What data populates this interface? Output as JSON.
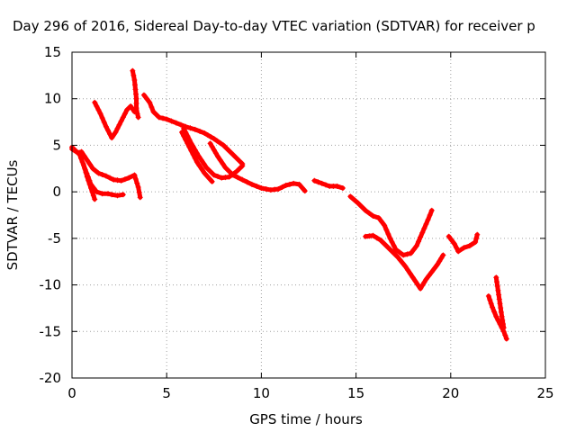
{
  "chart_data": {
    "type": "scatter",
    "title": "Day 296 of 2016, Sidereal Day-to-day VTEC variation (SDTVAR) for receiver p",
    "xlabel": "GPS time / hours",
    "ylabel": "SDTVAR / TECUs",
    "xlim": [
      0,
      25
    ],
    "ylim": [
      -20,
      15
    ],
    "x_ticks": [
      0,
      5,
      10,
      15,
      20,
      25
    ],
    "y_ticks": [
      15,
      10,
      5,
      0,
      -5,
      -10,
      -15,
      -20
    ],
    "grid": true,
    "marker": "+",
    "color": "#ff0000",
    "series": [
      {
        "points": [
          [
            0.0,
            4.8
          ],
          [
            0.4,
            4.0
          ],
          [
            0.7,
            2.4
          ],
          [
            1.0,
            0.8
          ],
          [
            1.3,
            0.0
          ],
          [
            1.6,
            -0.2
          ],
          [
            1.9,
            -0.2
          ],
          [
            2.1,
            -0.3
          ],
          [
            2.4,
            -0.4
          ],
          [
            2.7,
            -0.3
          ]
        ]
      },
      {
        "points": [
          [
            0.0,
            4.6
          ],
          [
            0.3,
            4.2
          ],
          [
            0.5,
            4.3
          ],
          [
            0.8,
            3.4
          ],
          [
            1.1,
            2.5
          ],
          [
            1.4,
            2.0
          ],
          [
            1.8,
            1.7
          ],
          [
            2.2,
            1.3
          ],
          [
            2.6,
            1.2
          ],
          [
            3.0,
            1.5
          ],
          [
            3.3,
            1.8
          ],
          [
            3.5,
            0.5
          ],
          [
            3.6,
            -0.6
          ]
        ]
      },
      {
        "points": [
          [
            0.6,
            3.0
          ],
          [
            0.8,
            1.6
          ],
          [
            1.0,
            0.4
          ],
          [
            1.2,
            -0.8
          ]
        ]
      },
      {
        "points": [
          [
            1.2,
            9.6
          ],
          [
            1.5,
            8.4
          ],
          [
            1.8,
            7.0
          ],
          [
            2.1,
            5.8
          ],
          [
            2.3,
            6.4
          ],
          [
            2.6,
            7.6
          ],
          [
            2.9,
            8.8
          ],
          [
            3.1,
            9.2
          ],
          [
            3.3,
            8.6
          ]
        ]
      },
      {
        "points": [
          [
            3.2,
            13.0
          ],
          [
            3.3,
            12.0
          ],
          [
            3.35,
            11.0
          ],
          [
            3.4,
            10.0
          ],
          [
            3.4,
            9.0
          ],
          [
            3.45,
            8.4
          ],
          [
            3.5,
            8.0
          ]
        ]
      },
      {
        "points": [
          [
            3.8,
            10.4
          ],
          [
            4.1,
            9.6
          ],
          [
            4.3,
            8.6
          ],
          [
            4.6,
            8.0
          ],
          [
            5.0,
            7.8
          ],
          [
            5.5,
            7.4
          ],
          [
            6.0,
            7.0
          ],
          [
            6.5,
            6.7
          ],
          [
            7.0,
            6.3
          ],
          [
            7.5,
            5.7
          ],
          [
            8.0,
            5.0
          ],
          [
            8.5,
            4.0
          ],
          [
            9.0,
            3.0
          ]
        ]
      },
      {
        "points": [
          [
            5.9,
            6.8
          ],
          [
            6.3,
            5.2
          ],
          [
            6.7,
            3.8
          ],
          [
            7.1,
            2.6
          ],
          [
            7.5,
            1.8
          ],
          [
            7.9,
            1.5
          ],
          [
            8.3,
            1.6
          ],
          [
            8.7,
            2.2
          ],
          [
            9.0,
            2.8
          ]
        ]
      },
      {
        "points": [
          [
            5.8,
            6.4
          ],
          [
            6.2,
            4.8
          ],
          [
            6.6,
            3.2
          ],
          [
            7.0,
            2.0
          ],
          [
            7.4,
            1.1
          ]
        ]
      },
      {
        "points": [
          [
            7.3,
            5.2
          ],
          [
            7.7,
            3.8
          ],
          [
            8.1,
            2.6
          ],
          [
            8.5,
            1.8
          ],
          [
            9.0,
            1.3
          ],
          [
            9.5,
            0.8
          ],
          [
            10.0,
            0.4
          ],
          [
            10.5,
            0.2
          ],
          [
            10.9,
            0.3
          ],
          [
            11.3,
            0.7
          ],
          [
            11.7,
            0.9
          ],
          [
            12.0,
            0.8
          ],
          [
            12.3,
            0.1
          ]
        ]
      },
      {
        "points": [
          [
            12.8,
            1.2
          ],
          [
            13.2,
            0.9
          ],
          [
            13.6,
            0.6
          ],
          [
            14.0,
            0.6
          ],
          [
            14.3,
            0.4
          ]
        ]
      },
      {
        "points": [
          [
            14.7,
            -0.5
          ],
          [
            15.1,
            -1.2
          ],
          [
            15.5,
            -2.0
          ],
          [
            15.9,
            -2.6
          ],
          [
            16.2,
            -2.8
          ],
          [
            16.5,
            -3.6
          ],
          [
            16.8,
            -5.0
          ],
          [
            17.1,
            -6.2
          ],
          [
            17.5,
            -6.8
          ],
          [
            17.9,
            -6.6
          ],
          [
            18.2,
            -5.8
          ],
          [
            18.5,
            -4.4
          ],
          [
            18.8,
            -3.0
          ],
          [
            19.0,
            -2.0
          ]
        ]
      },
      {
        "points": [
          [
            15.5,
            -4.8
          ],
          [
            15.9,
            -4.7
          ],
          [
            16.3,
            -5.2
          ],
          [
            16.7,
            -6.0
          ],
          [
            17.2,
            -7.0
          ],
          [
            17.6,
            -8.0
          ],
          [
            18.0,
            -9.2
          ],
          [
            18.4,
            -10.4
          ],
          [
            18.7,
            -9.4
          ],
          [
            19.0,
            -8.6
          ],
          [
            19.3,
            -7.8
          ],
          [
            19.6,
            -6.8
          ]
        ]
      },
      {
        "points": [
          [
            19.9,
            -4.8
          ],
          [
            20.2,
            -5.6
          ],
          [
            20.4,
            -6.4
          ],
          [
            20.7,
            -6.0
          ],
          [
            21.0,
            -5.8
          ],
          [
            21.3,
            -5.4
          ],
          [
            21.4,
            -4.6
          ]
        ]
      },
      {
        "points": [
          [
            22.0,
            -11.2
          ],
          [
            22.2,
            -12.4
          ],
          [
            22.4,
            -13.4
          ],
          [
            22.6,
            -14.2
          ],
          [
            22.8,
            -15.0
          ],
          [
            22.95,
            -15.8
          ]
        ]
      },
      {
        "points": [
          [
            22.4,
            -9.2
          ],
          [
            22.5,
            -10.6
          ],
          [
            22.6,
            -12.0
          ],
          [
            22.7,
            -13.4
          ],
          [
            22.8,
            -14.6
          ]
        ]
      }
    ]
  }
}
